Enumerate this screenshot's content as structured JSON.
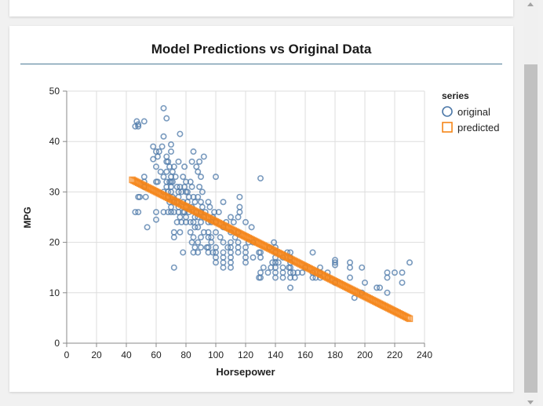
{
  "chart_data": {
    "type": "scatter",
    "title": "Model Predictions vs Original Data",
    "xlabel": "Horsepower",
    "ylabel": "MPG",
    "xlim": [
      0,
      240
    ],
    "ylim": [
      0,
      50
    ],
    "x_ticks": [
      0,
      20,
      40,
      60,
      80,
      100,
      120,
      140,
      160,
      180,
      200,
      220,
      240
    ],
    "y_ticks": [
      0,
      10,
      20,
      30,
      40,
      50
    ],
    "grid": true,
    "legend": {
      "title": "series",
      "position": "top-right"
    },
    "series": [
      {
        "name": "original",
        "marker": "circle",
        "color": "#4c78a8",
        "points": [
          [
            46,
            26
          ],
          [
            46,
            43
          ],
          [
            47,
            44
          ],
          [
            48,
            43.4
          ],
          [
            48,
            29
          ],
          [
            48,
            26
          ],
          [
            48,
            43
          ],
          [
            49,
            29
          ],
          [
            52,
            33
          ],
          [
            52,
            32
          ],
          [
            52,
            31
          ],
          [
            52,
            44
          ],
          [
            53,
            29
          ],
          [
            54,
            23
          ],
          [
            58,
            39
          ],
          [
            58,
            36.5
          ],
          [
            60,
            32
          ],
          [
            60,
            26
          ],
          [
            60,
            35
          ],
          [
            60,
            38
          ],
          [
            60,
            24.5
          ],
          [
            61,
            32
          ],
          [
            61,
            37
          ],
          [
            62,
            38
          ],
          [
            63,
            34
          ],
          [
            64,
            39
          ],
          [
            65,
            46.6
          ],
          [
            65,
            33
          ],
          [
            65,
            41
          ],
          [
            65,
            30
          ],
          [
            65,
            26
          ],
          [
            67,
            44.6
          ],
          [
            67,
            31
          ],
          [
            67,
            34
          ],
          [
            67,
            32
          ],
          [
            67,
            36
          ],
          [
            67,
            37
          ],
          [
            68,
            36
          ],
          [
            68,
            30
          ],
          [
            68,
            29
          ],
          [
            68,
            26
          ],
          [
            69,
            35
          ],
          [
            69,
            32
          ],
          [
            69,
            28
          ],
          [
            70,
            33
          ],
          [
            70,
            31
          ],
          [
            70,
            32
          ],
          [
            70,
            30
          ],
          [
            70,
            38
          ],
          [
            70,
            27
          ],
          [
            70,
            39.4
          ],
          [
            70,
            26
          ],
          [
            71,
            32
          ],
          [
            71,
            34
          ],
          [
            71,
            29
          ],
          [
            72,
            28
          ],
          [
            72,
            26
          ],
          [
            72,
            21
          ],
          [
            72,
            15
          ],
          [
            72,
            22
          ],
          [
            72,
            35
          ],
          [
            73,
            33
          ],
          [
            74,
            31
          ],
          [
            74,
            28
          ],
          [
            74,
            24
          ],
          [
            75,
            29
          ],
          [
            75,
            36
          ],
          [
            75,
            30
          ],
          [
            75,
            26
          ],
          [
            75,
            27
          ],
          [
            76,
            41.5
          ],
          [
            76,
            31
          ],
          [
            76,
            25
          ],
          [
            76,
            22
          ],
          [
            77,
            30
          ],
          [
            77,
            24
          ],
          [
            78,
            28
          ],
          [
            78,
            33
          ],
          [
            78,
            26
          ],
          [
            78,
            18
          ],
          [
            79,
            31
          ],
          [
            79,
            26
          ],
          [
            79,
            35
          ],
          [
            80,
            24
          ],
          [
            80,
            32
          ],
          [
            80,
            30
          ],
          [
            80,
            27
          ],
          [
            80,
            25
          ],
          [
            81,
            28
          ],
          [
            81,
            30
          ],
          [
            82,
            29
          ],
          [
            82,
            26
          ],
          [
            83,
            32
          ],
          [
            83,
            24
          ],
          [
            83,
            22
          ],
          [
            84,
            36
          ],
          [
            84,
            31
          ],
          [
            84,
            27
          ],
          [
            84,
            20
          ],
          [
            85,
            38
          ],
          [
            85,
            29
          ],
          [
            85,
            24
          ],
          [
            85,
            21
          ],
          [
            85,
            18
          ],
          [
            86,
            28
          ],
          [
            86,
            25
          ],
          [
            86,
            23
          ],
          [
            86,
            19
          ],
          [
            87,
            35
          ],
          [
            87,
            26
          ],
          [
            88,
            34
          ],
          [
            88,
            29
          ],
          [
            88,
            25
          ],
          [
            88,
            23
          ],
          [
            88,
            20
          ],
          [
            88,
            18
          ],
          [
            89,
            36
          ],
          [
            89,
            31
          ],
          [
            90,
            33
          ],
          [
            90,
            28
          ],
          [
            90,
            26
          ],
          [
            90,
            24
          ],
          [
            90,
            21
          ],
          [
            90,
            19
          ],
          [
            91,
            30
          ],
          [
            91,
            27
          ],
          [
            92,
            37
          ],
          [
            92,
            25
          ],
          [
            92,
            22
          ],
          [
            93,
            26
          ],
          [
            94,
            19
          ],
          [
            95,
            28
          ],
          [
            95,
            24
          ],
          [
            95,
            22
          ],
          [
            95,
            21
          ],
          [
            95,
            19
          ],
          [
            95,
            18
          ],
          [
            96,
            27
          ],
          [
            97,
            24
          ],
          [
            97,
            21
          ],
          [
            97,
            20
          ],
          [
            98,
            25
          ],
          [
            98,
            18
          ],
          [
            99,
            26
          ],
          [
            100,
            33
          ],
          [
            100,
            24
          ],
          [
            100,
            22
          ],
          [
            100,
            19
          ],
          [
            100,
            18
          ],
          [
            100,
            17
          ],
          [
            100,
            16
          ],
          [
            102,
            26
          ],
          [
            103,
            21
          ],
          [
            105,
            28
          ],
          [
            105,
            23
          ],
          [
            105,
            20
          ],
          [
            105,
            18
          ],
          [
            105,
            17
          ],
          [
            105,
            16
          ],
          [
            105,
            15
          ],
          [
            107,
            24
          ],
          [
            108,
            19
          ],
          [
            110,
            25
          ],
          [
            110,
            22
          ],
          [
            110,
            20
          ],
          [
            110,
            19
          ],
          [
            110,
            18
          ],
          [
            110,
            17
          ],
          [
            110,
            16
          ],
          [
            110,
            15
          ],
          [
            112,
            24
          ],
          [
            113,
            21
          ],
          [
            115,
            25
          ],
          [
            115,
            22
          ],
          [
            115,
            20
          ],
          [
            115,
            19
          ],
          [
            115,
            18
          ],
          [
            116,
            26
          ],
          [
            116,
            27
          ],
          [
            116,
            29
          ],
          [
            120,
            24
          ],
          [
            120,
            19
          ],
          [
            120,
            18
          ],
          [
            120,
            17
          ],
          [
            120,
            16
          ],
          [
            122,
            20
          ],
          [
            124,
            23
          ],
          [
            125,
            20
          ],
          [
            125,
            17
          ],
          [
            129,
            13
          ],
          [
            129,
            18
          ],
          [
            130,
            14
          ],
          [
            130,
            13
          ],
          [
            130,
            17
          ],
          [
            130,
            32.7
          ],
          [
            130,
            18
          ],
          [
            132,
            15
          ],
          [
            135,
            14
          ],
          [
            136,
            19
          ],
          [
            137,
            15
          ],
          [
            138,
            16
          ],
          [
            139,
            20
          ],
          [
            140,
            13
          ],
          [
            140,
            14
          ],
          [
            140,
            15
          ],
          [
            140,
            16
          ],
          [
            140,
            17
          ],
          [
            140,
            18
          ],
          [
            140,
            19
          ],
          [
            142,
            16
          ],
          [
            145,
            13
          ],
          [
            145,
            14
          ],
          [
            145,
            15
          ],
          [
            145,
            17
          ],
          [
            148,
            18
          ],
          [
            149,
            15
          ],
          [
            150,
            11
          ],
          [
            150,
            13
          ],
          [
            150,
            14
          ],
          [
            150,
            15
          ],
          [
            150,
            16
          ],
          [
            150,
            17
          ],
          [
            150,
            18
          ],
          [
            152,
            14
          ],
          [
            153,
            13
          ],
          [
            155,
            14
          ],
          [
            158,
            14
          ],
          [
            160,
            15
          ],
          [
            165,
            13
          ],
          [
            165,
            14
          ],
          [
            165,
            18
          ],
          [
            167,
            13
          ],
          [
            170,
            13
          ],
          [
            170,
            14
          ],
          [
            170,
            15
          ],
          [
            175,
            13
          ],
          [
            175,
            14
          ],
          [
            180,
            15.5
          ],
          [
            180,
            16
          ],
          [
            180,
            16.5
          ],
          [
            180,
            12
          ],
          [
            190,
            13
          ],
          [
            190,
            15
          ],
          [
            190,
            16
          ],
          [
            193,
            9
          ],
          [
            198,
            10
          ],
          [
            198,
            15
          ],
          [
            200,
            12
          ],
          [
            208,
            11
          ],
          [
            210,
            11
          ],
          [
            215,
            14
          ],
          [
            215,
            13
          ],
          [
            215,
            10
          ],
          [
            220,
            14
          ],
          [
            225,
            14
          ],
          [
            225,
            12
          ],
          [
            230,
            16
          ]
        ]
      },
      {
        "name": "predicted",
        "marker": "square",
        "color": "#f58518",
        "line": {
          "x_start": 44,
          "y_start": 32.4,
          "slope": -0.1481,
          "x_end": 230
        },
        "points": []
      }
    ]
  }
}
